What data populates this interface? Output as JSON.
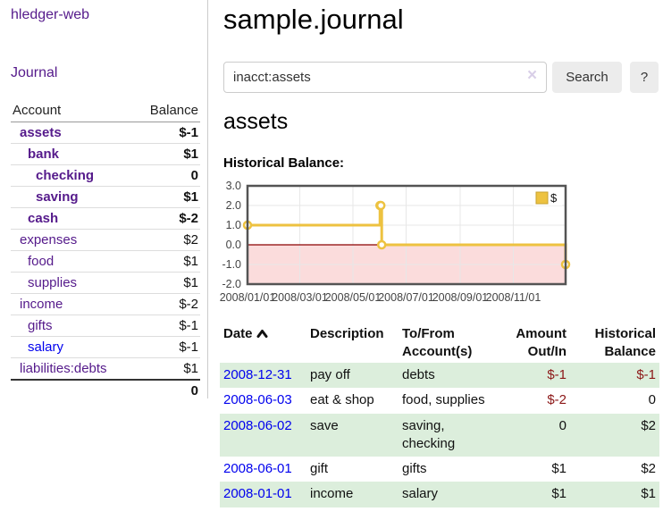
{
  "app": {
    "title": "hledger-web"
  },
  "sidebar": {
    "nav": {
      "journal_label": "Journal"
    },
    "accounts_table": {
      "headers": {
        "account": "Account",
        "balance": "Balance"
      },
      "rows": [
        {
          "account": "assets",
          "balance": "$-1",
          "depth": 0,
          "emphasized": true
        },
        {
          "account": "bank",
          "balance": "$1",
          "depth": 1,
          "emphasized": true
        },
        {
          "account": "checking",
          "balance": "0",
          "depth": 2,
          "emphasized": true
        },
        {
          "account": "saving",
          "balance": "$1",
          "depth": 2,
          "emphasized": true
        },
        {
          "account": "cash",
          "balance": "$-2",
          "depth": 1,
          "emphasized": true
        },
        {
          "account": "expenses",
          "balance": "$2",
          "depth": 0,
          "emphasized": false
        },
        {
          "account": "food",
          "balance": "$1",
          "depth": 1,
          "emphasized": false
        },
        {
          "account": "supplies",
          "balance": "$1",
          "depth": 1,
          "emphasized": false
        },
        {
          "account": "income",
          "balance": "$-2",
          "depth": 0,
          "emphasized": false
        },
        {
          "account": "gifts",
          "balance": "$-1",
          "depth": 1,
          "emphasized": false
        },
        {
          "account": "salary",
          "balance": "$-1",
          "depth": 1,
          "emphasized": false,
          "unvisited": true
        },
        {
          "account": "liabilities:debts",
          "balance": "$1",
          "depth": 0,
          "emphasized": false
        }
      ],
      "total": "0"
    }
  },
  "header": {
    "title": "sample.journal"
  },
  "search": {
    "value": "inacct:assets",
    "clear_icon": "×",
    "button_label": "Search",
    "help_label": "?"
  },
  "account_page": {
    "heading": "assets",
    "chart_label": "Historical Balance:"
  },
  "chart_data": {
    "type": "line",
    "title": "Historical Balance",
    "step": true,
    "series": [
      {
        "name": "$",
        "points": [
          [
            "2008/01/01",
            1
          ],
          [
            "2008/06/01",
            2
          ],
          [
            "2008/06/02",
            2
          ],
          [
            "2008/06/03",
            0
          ],
          [
            "2008/12/31",
            -1
          ]
        ]
      }
    ],
    "x_range": [
      "2008/01/01",
      "2008/12/31"
    ],
    "x_ticks": [
      "2008/01/01",
      "2008/03/01",
      "2008/05/01",
      "2008/07/01",
      "2008/09/01",
      "2008/11/01"
    ],
    "y_ticks": [
      "3.0",
      "2.0",
      "1.0",
      "0.0",
      "-1.0",
      "-2.0"
    ],
    "ylim": [
      -2,
      3
    ],
    "grid": true,
    "legend": {
      "label": "$",
      "position": "top-right"
    },
    "colors": {
      "line": "#edc240",
      "marker_fill": "#ffffff",
      "negative_region": "#fbdcdc",
      "zero_line": "#8b0000",
      "grid": "#e7e7e7",
      "border": "#545454",
      "tick_text": "#444444",
      "legend_box_border": "#c7a231"
    }
  },
  "register_table": {
    "headers": {
      "date": "Date",
      "description": "Description",
      "tofrom_line1": "To/From",
      "tofrom_line2": "Account(s)",
      "amount_line1": "Amount",
      "amount_line2": "Out/In",
      "balance_line1": "Historical",
      "balance_line2": "Balance"
    },
    "sort_icon": "chevron-up",
    "rows": [
      {
        "date": "2008-12-31",
        "description": "pay off",
        "accounts": "debts",
        "amount": "$-1",
        "balance": "$-1"
      },
      {
        "date": "2008-06-03",
        "description": "eat & shop",
        "accounts": "food, supplies",
        "amount": "$-2",
        "balance": "0"
      },
      {
        "date": "2008-06-02",
        "description": "save",
        "accounts": "saving, checking",
        "amount": "0",
        "balance": "$2"
      },
      {
        "date": "2008-06-01",
        "description": "gift",
        "accounts": "gifts",
        "amount": "$1",
        "balance": "$2"
      },
      {
        "date": "2008-01-01",
        "description": "income",
        "accounts": "salary",
        "amount": "$1",
        "balance": "$1"
      }
    ]
  },
  "colors": {
    "accent_purple": "#551a8b",
    "link_blue": "#0000ee",
    "negative": "#8c1717",
    "negative_soft": "#bb7474",
    "row_stripe_green": "#dceedc",
    "button_bg": "#ececec"
  }
}
